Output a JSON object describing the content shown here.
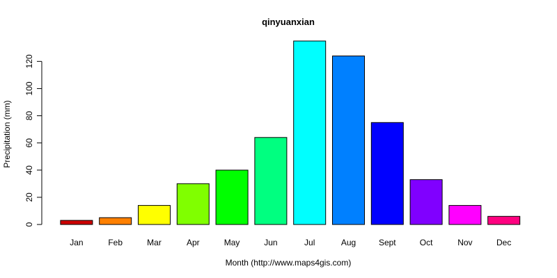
{
  "chart_data": {
    "type": "bar",
    "title": "qinyuanxian",
    "xlabel": "Month (http://www.maps4gis.com)",
    "ylabel": "Precipitation (mm)",
    "categories": [
      "Jan",
      "Feb",
      "Mar",
      "Apr",
      "May",
      "Jun",
      "Jul",
      "Aug",
      "Sept",
      "Oct",
      "Nov",
      "Dec"
    ],
    "values": [
      3,
      5,
      14,
      30,
      40,
      64,
      135,
      124,
      75,
      33,
      14,
      6
    ],
    "colors": [
      "#cc0000",
      "#ff8000",
      "#ffff00",
      "#80ff00",
      "#00ff00",
      "#00ff80",
      "#00ffff",
      "#0080ff",
      "#0000ff",
      "#8000ff",
      "#ff00ff",
      "#ff0080"
    ],
    "ylim": [
      0,
      135
    ],
    "yticks": [
      0,
      20,
      40,
      60,
      80,
      100,
      120
    ],
    "grid": false,
    "legend": "none"
  }
}
